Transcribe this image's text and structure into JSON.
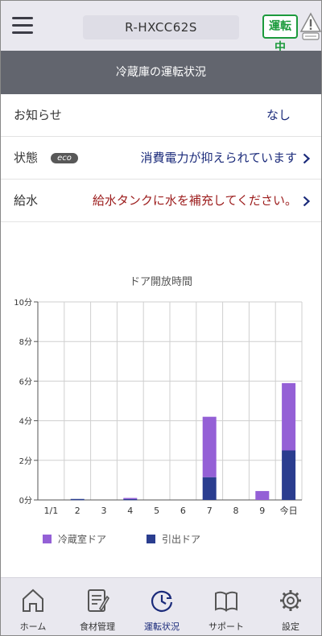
{
  "header": {
    "model": "R-HXCC62S",
    "running_badge": "運転中"
  },
  "section_title": "冷蔵庫の運転状況",
  "rows": {
    "notice": {
      "label": "お知らせ",
      "value": "なし"
    },
    "status": {
      "label": "状態",
      "badge": "eco",
      "value": "消費電力が抑えられています"
    },
    "water": {
      "label": "給水",
      "value": "給水タンクに水を補充してください。"
    }
  },
  "chart_data": {
    "type": "bar",
    "stacked": true,
    "title": "ドア開放時間",
    "categories": [
      "1/1",
      "2",
      "3",
      "4",
      "5",
      "6",
      "7",
      "8",
      "9",
      "今日"
    ],
    "ylim": [
      0,
      10
    ],
    "yticks": [
      "0分",
      "2分",
      "4分",
      "6分",
      "8分",
      "10分"
    ],
    "grid": true,
    "legend_position": "bottom",
    "series": [
      {
        "name": "引出ドア",
        "color": "#2a3d8f",
        "values": [
          0,
          0.05,
          0,
          0.05,
          0,
          0,
          1.15,
          0,
          0,
          2.5
        ]
      },
      {
        "name": "冷蔵室ドア",
        "color": "#9460d6",
        "values": [
          0,
          0,
          0,
          0.05,
          0,
          0,
          3.05,
          0,
          0.45,
          3.4
        ]
      }
    ]
  },
  "tabs": [
    {
      "label": "ホーム",
      "icon": "home-icon"
    },
    {
      "label": "食材管理",
      "icon": "food-list-icon"
    },
    {
      "label": "運転状況",
      "icon": "clock-status-icon"
    },
    {
      "label": "サポート",
      "icon": "book-icon"
    },
    {
      "label": "設定",
      "icon": "gear-icon"
    }
  ]
}
